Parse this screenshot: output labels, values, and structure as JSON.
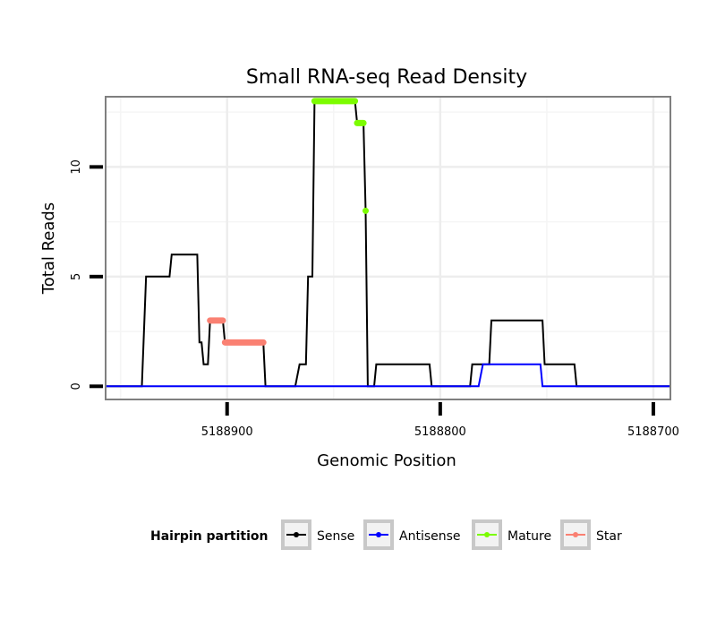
{
  "chart_data": {
    "type": "line",
    "title": "Small RNA-seq Read Density",
    "xlabel": "Genomic Position",
    "ylabel": "Total Reads",
    "x_reversed": true,
    "xlim": [
      5188957,
      5188692
    ],
    "ylim": [
      -0.6,
      13.2
    ],
    "x_ticks": [
      5188900,
      5188800,
      5188700
    ],
    "x_tick_labels": [
      "5188900",
      "5188800",
      "5188700"
    ],
    "y_ticks": [
      0,
      5,
      10
    ],
    "y_tick_labels": [
      "0",
      "5",
      "10"
    ],
    "grid": true,
    "legend": {
      "title": "Hairpin partition",
      "position": "bottom",
      "entries": [
        {
          "name": "Sense",
          "color": "#000000"
        },
        {
          "name": "Antisense",
          "color": "#0000ff"
        },
        {
          "name": "Mature",
          "color": "#7cfc00"
        },
        {
          "name": "Star",
          "color": "#fa8072"
        }
      ]
    },
    "series": [
      {
        "name": "Sense",
        "color": "#000000",
        "points": [
          [
            5188957,
            0
          ],
          [
            5188940,
            0
          ],
          [
            5188938,
            5
          ],
          [
            5188927,
            5
          ],
          [
            5188926,
            6
          ],
          [
            5188914,
            6
          ],
          [
            5188913,
            2
          ],
          [
            5188912,
            2
          ],
          [
            5188911,
            1
          ],
          [
            5188909,
            1
          ],
          [
            5188908,
            3
          ],
          [
            5188902,
            3
          ],
          [
            5188901,
            2
          ],
          [
            5188883,
            2
          ],
          [
            5188882,
            0
          ],
          [
            5188868,
            0
          ],
          [
            5188866,
            1
          ],
          [
            5188863,
            1
          ],
          [
            5188862,
            5
          ],
          [
            5188860,
            5
          ],
          [
            5188859,
            13
          ],
          [
            5188840,
            13
          ],
          [
            5188839,
            12
          ],
          [
            5188836,
            12
          ],
          [
            5188835,
            8
          ],
          [
            5188834,
            0
          ],
          [
            5188831,
            0
          ],
          [
            5188830,
            1
          ],
          [
            5188805,
            1
          ],
          [
            5188804,
            0
          ],
          [
            5188786,
            0
          ],
          [
            5188785,
            1
          ],
          [
            5188777,
            1
          ],
          [
            5188776,
            3
          ],
          [
            5188752,
            3
          ],
          [
            5188751,
            1
          ],
          [
            5188737,
            1
          ],
          [
            5188736,
            0
          ],
          [
            5188692,
            0
          ]
        ]
      },
      {
        "name": "Antisense",
        "color": "#0000ff",
        "points": [
          [
            5188957,
            0
          ],
          [
            5188782,
            0
          ],
          [
            5188780,
            1
          ],
          [
            5188753,
            1
          ],
          [
            5188752,
            0
          ],
          [
            5188692,
            0
          ]
        ]
      },
      {
        "name": "Mature",
        "color": "#7cfc00",
        "segments": [
          {
            "x_start": 5188859,
            "x_end": 5188840,
            "y": 13
          },
          {
            "x_start": 5188839,
            "x_end": 5188836,
            "y": 12
          },
          {
            "x_start": 5188835,
            "x_end": 5188835,
            "y": 8
          }
        ]
      },
      {
        "name": "Star",
        "color": "#fa8072",
        "segments": [
          {
            "x_start": 5188908,
            "x_end": 5188902,
            "y": 3
          },
          {
            "x_start": 5188901,
            "x_end": 5188883,
            "y": 2
          }
        ]
      }
    ]
  }
}
